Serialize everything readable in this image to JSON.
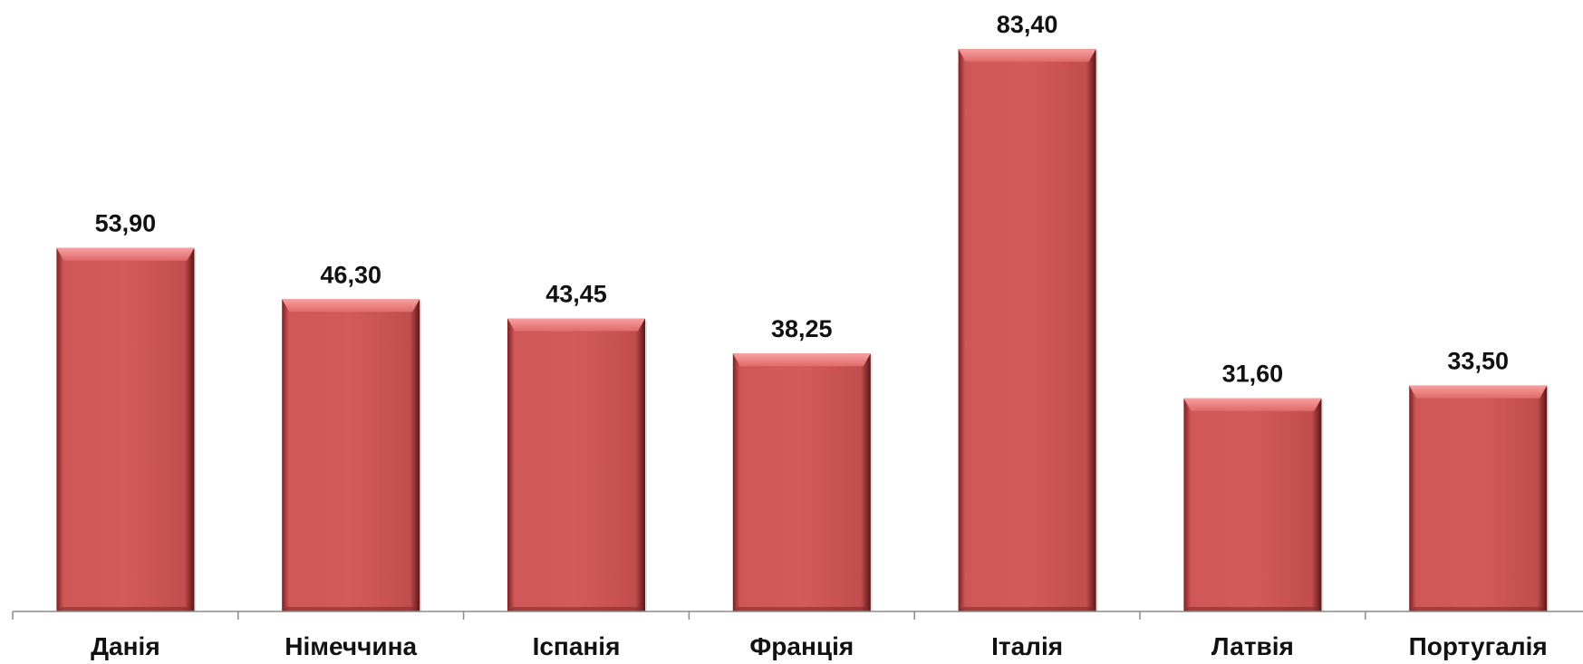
{
  "chart_data": {
    "type": "bar",
    "title": "",
    "xlabel": "",
    "ylabel": "",
    "categories": [
      "Данія",
      "Німеччина",
      "Іспанія",
      "Франція",
      "Італія",
      "Латвія",
      "Португалія"
    ],
    "values": [
      53.9,
      46.3,
      43.45,
      38.25,
      83.4,
      31.6,
      33.5
    ],
    "value_labels": [
      "53,90",
      "46,30",
      "43,45",
      "38,25",
      "83,40",
      "31,60",
      "33,50"
    ],
    "ylim": [
      0,
      90
    ],
    "grid": false,
    "legend": "none",
    "colors": {
      "bar": "#d05a5a",
      "bar_top": "#f08686",
      "bar_shadow": "#6e1c1c",
      "axis": "#8c8c8c",
      "text": "#111111"
    }
  }
}
